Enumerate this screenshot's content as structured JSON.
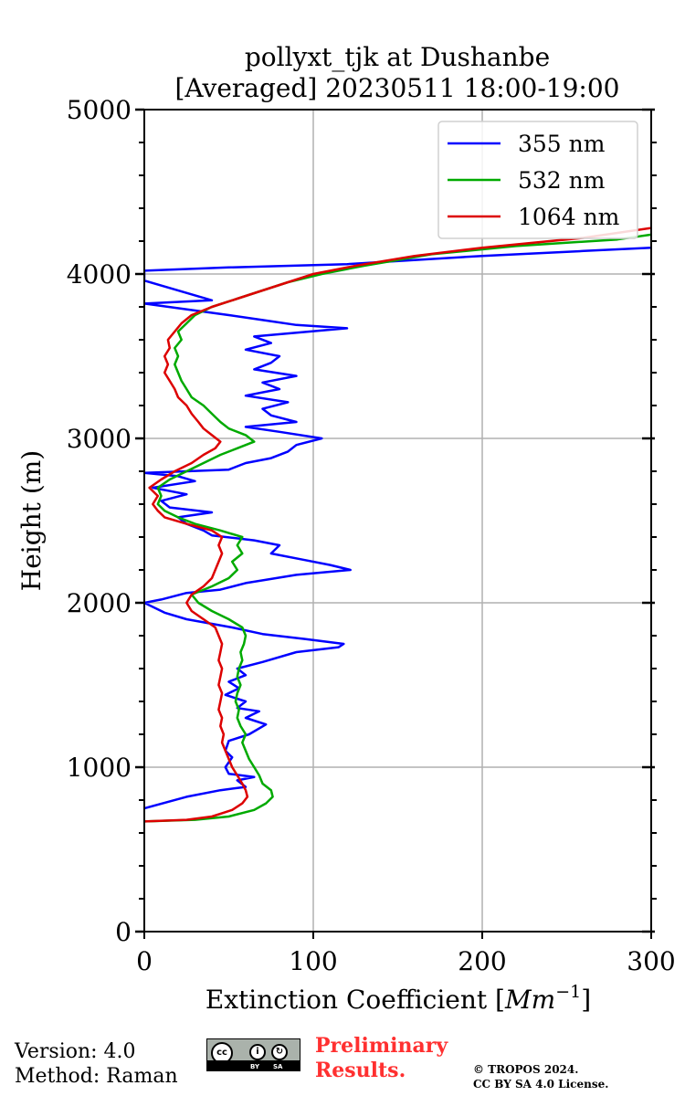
{
  "chart_data": {
    "type": "line",
    "title": [
      "pollyxt_tjk at Dushanbe",
      "[Averaged] 20230511 18:00-19:00"
    ],
    "xlabel": "Extinction Coefficient [Mm⁻¹]",
    "xlabel_main": "Extinction Coefficient [",
    "xlabel_unit": "Mm",
    "xlabel_exp": "−1",
    "xlabel_close": "]",
    "ylabel": "Height (m)",
    "xlim": [
      0,
      300
    ],
    "ylim": [
      0,
      5000
    ],
    "x_ticks": [
      0,
      100,
      200,
      300
    ],
    "x_tick_labels": [
      "0",
      "100",
      "200",
      "300"
    ],
    "y_ticks": [
      0,
      1000,
      2000,
      3000,
      4000,
      5000
    ],
    "y_tick_labels": [
      "0",
      "1000",
      "2000",
      "3000",
      "4000",
      "5000"
    ],
    "grid": true,
    "legend_position": "top-right",
    "series": [
      {
        "name": "355 nm",
        "color": "#0000ff",
        "points": [
          [
            0,
            750
          ],
          [
            25,
            820
          ],
          [
            45,
            860
          ],
          [
            60,
            880
          ],
          [
            55,
            920
          ],
          [
            65,
            940
          ],
          [
            50,
            960
          ],
          [
            48,
            1000
          ],
          [
            52,
            1060
          ],
          [
            48,
            1100
          ],
          [
            50,
            1160
          ],
          [
            62,
            1200
          ],
          [
            72,
            1260
          ],
          [
            60,
            1300
          ],
          [
            68,
            1340
          ],
          [
            55,
            1360
          ],
          [
            60,
            1400
          ],
          [
            48,
            1440
          ],
          [
            56,
            1480
          ],
          [
            50,
            1520
          ],
          [
            60,
            1560
          ],
          [
            55,
            1600
          ],
          [
            70,
            1640
          ],
          [
            90,
            1700
          ],
          [
            115,
            1730
          ],
          [
            118,
            1750
          ],
          [
            95,
            1780
          ],
          [
            70,
            1810
          ],
          [
            52,
            1850
          ],
          [
            25,
            1900
          ],
          [
            12,
            1940
          ],
          [
            0,
            2000
          ],
          [
            10,
            2020
          ],
          [
            25,
            2060
          ],
          [
            45,
            2080
          ],
          [
            60,
            2120
          ],
          [
            90,
            2170
          ],
          [
            122,
            2200
          ],
          [
            110,
            2230
          ],
          [
            95,
            2260
          ],
          [
            75,
            2300
          ],
          [
            80,
            2350
          ],
          [
            65,
            2380
          ],
          [
            40,
            2410
          ],
          [
            35,
            2440
          ],
          [
            25,
            2480
          ],
          [
            20,
            2520
          ],
          [
            40,
            2550
          ],
          [
            15,
            2580
          ],
          [
            10,
            2620
          ],
          [
            25,
            2660
          ],
          [
            5,
            2700
          ],
          [
            30,
            2740
          ],
          [
            20,
            2770
          ],
          [
            0,
            2790
          ],
          [
            50,
            2810
          ],
          [
            60,
            2850
          ],
          [
            75,
            2880
          ],
          [
            85,
            2920
          ],
          [
            90,
            2960
          ],
          [
            105,
            3000
          ],
          [
            80,
            3040
          ],
          [
            60,
            3070
          ],
          [
            90,
            3100
          ],
          [
            75,
            3140
          ],
          [
            70,
            3180
          ],
          [
            85,
            3220
          ],
          [
            60,
            3260
          ],
          [
            80,
            3300
          ],
          [
            70,
            3340
          ],
          [
            90,
            3380
          ],
          [
            65,
            3420
          ],
          [
            75,
            3460
          ],
          [
            80,
            3500
          ],
          [
            60,
            3540
          ],
          [
            75,
            3580
          ],
          [
            65,
            3620
          ],
          [
            120,
            3670
          ],
          [
            90,
            3690
          ],
          [
            70,
            3720
          ],
          [
            50,
            3750
          ],
          [
            0,
            3820
          ],
          [
            40,
            3840
          ],
          [
            0,
            3960
          ],
          [
            0,
            4020
          ],
          [
            50,
            4040
          ],
          [
            120,
            4060
          ],
          [
            200,
            4110
          ],
          [
            260,
            4140
          ],
          [
            300,
            4160
          ]
        ]
      },
      {
        "name": "532 nm",
        "color": "#00aa00",
        "points": [
          [
            0,
            670
          ],
          [
            30,
            680
          ],
          [
            50,
            700
          ],
          [
            65,
            740
          ],
          [
            72,
            780
          ],
          [
            76,
            820
          ],
          [
            75,
            860
          ],
          [
            70,
            900
          ],
          [
            68,
            950
          ],
          [
            65,
            1000
          ],
          [
            62,
            1050
          ],
          [
            60,
            1100
          ],
          [
            58,
            1150
          ],
          [
            60,
            1200
          ],
          [
            57,
            1250
          ],
          [
            55,
            1300
          ],
          [
            56,
            1350
          ],
          [
            54,
            1400
          ],
          [
            55,
            1450
          ],
          [
            57,
            1500
          ],
          [
            55,
            1550
          ],
          [
            56,
            1600
          ],
          [
            58,
            1650
          ],
          [
            57,
            1700
          ],
          [
            59,
            1750
          ],
          [
            60,
            1800
          ],
          [
            58,
            1850
          ],
          [
            50,
            1900
          ],
          [
            40,
            1950
          ],
          [
            32,
            2000
          ],
          [
            28,
            2050
          ],
          [
            40,
            2100
          ],
          [
            50,
            2150
          ],
          [
            55,
            2200
          ],
          [
            52,
            2250
          ],
          [
            58,
            2300
          ],
          [
            55,
            2350
          ],
          [
            58,
            2400
          ],
          [
            45,
            2440
          ],
          [
            30,
            2480
          ],
          [
            20,
            2520
          ],
          [
            12,
            2560
          ],
          [
            8,
            2600
          ],
          [
            10,
            2650
          ],
          [
            8,
            2700
          ],
          [
            15,
            2750
          ],
          [
            25,
            2800
          ],
          [
            35,
            2850
          ],
          [
            45,
            2900
          ],
          [
            55,
            2940
          ],
          [
            65,
            2980
          ],
          [
            60,
            3020
          ],
          [
            50,
            3060
          ],
          [
            45,
            3100
          ],
          [
            40,
            3150
          ],
          [
            35,
            3200
          ],
          [
            28,
            3250
          ],
          [
            25,
            3300
          ],
          [
            22,
            3350
          ],
          [
            20,
            3400
          ],
          [
            18,
            3450
          ],
          [
            20,
            3500
          ],
          [
            18,
            3550
          ],
          [
            22,
            3600
          ],
          [
            20,
            3650
          ],
          [
            25,
            3700
          ],
          [
            30,
            3750
          ],
          [
            40,
            3800
          ],
          [
            55,
            3850
          ],
          [
            70,
            3900
          ],
          [
            85,
            3950
          ],
          [
            105,
            4000
          ],
          [
            130,
            4050
          ],
          [
            170,
            4120
          ],
          [
            220,
            4170
          ],
          [
            280,
            4210
          ],
          [
            300,
            4240
          ]
        ]
      },
      {
        "name": "1064 nm",
        "color": "#dd0000",
        "points": [
          [
            0,
            670
          ],
          [
            25,
            680
          ],
          [
            40,
            700
          ],
          [
            52,
            740
          ],
          [
            58,
            780
          ],
          [
            61,
            820
          ],
          [
            60,
            860
          ],
          [
            58,
            900
          ],
          [
            55,
            950
          ],
          [
            52,
            1000
          ],
          [
            50,
            1050
          ],
          [
            48,
            1100
          ],
          [
            46,
            1150
          ],
          [
            47,
            1200
          ],
          [
            45,
            1250
          ],
          [
            46,
            1300
          ],
          [
            44,
            1350
          ],
          [
            45,
            1400
          ],
          [
            46,
            1450
          ],
          [
            44,
            1500
          ],
          [
            45,
            1550
          ],
          [
            46,
            1600
          ],
          [
            44,
            1650
          ],
          [
            45,
            1700
          ],
          [
            46,
            1750
          ],
          [
            44,
            1800
          ],
          [
            42,
            1850
          ],
          [
            35,
            1900
          ],
          [
            28,
            1950
          ],
          [
            25,
            2000
          ],
          [
            28,
            2050
          ],
          [
            35,
            2100
          ],
          [
            40,
            2150
          ],
          [
            42,
            2200
          ],
          [
            44,
            2250
          ],
          [
            46,
            2300
          ],
          [
            44,
            2350
          ],
          [
            46,
            2400
          ],
          [
            40,
            2440
          ],
          [
            25,
            2480
          ],
          [
            12,
            2520
          ],
          [
            8,
            2560
          ],
          [
            5,
            2600
          ],
          [
            8,
            2650
          ],
          [
            3,
            2700
          ],
          [
            10,
            2750
          ],
          [
            18,
            2800
          ],
          [
            28,
            2850
          ],
          [
            35,
            2900
          ],
          [
            42,
            2940
          ],
          [
            45,
            2980
          ],
          [
            40,
            3020
          ],
          [
            35,
            3060
          ],
          [
            32,
            3100
          ],
          [
            28,
            3150
          ],
          [
            25,
            3200
          ],
          [
            20,
            3250
          ],
          [
            18,
            3300
          ],
          [
            15,
            3350
          ],
          [
            12,
            3400
          ],
          [
            14,
            3450
          ],
          [
            12,
            3500
          ],
          [
            15,
            3550
          ],
          [
            14,
            3600
          ],
          [
            18,
            3650
          ],
          [
            22,
            3700
          ],
          [
            28,
            3750
          ],
          [
            40,
            3800
          ],
          [
            55,
            3850
          ],
          [
            70,
            3900
          ],
          [
            85,
            3950
          ],
          [
            100,
            4000
          ],
          [
            125,
            4050
          ],
          [
            160,
            4110
          ],
          [
            200,
            4160
          ],
          [
            260,
            4220
          ],
          [
            300,
            4280
          ]
        ]
      }
    ]
  },
  "footer": {
    "version": "Version: 4.0",
    "method": "Method: Raman",
    "preliminary_line1": "Preliminary",
    "preliminary_line2": "Results.",
    "copyright_line1": "© TROPOS 2024.",
    "copyright_line2": "CC BY SA 4.0 License.",
    "cc_badge": {
      "cc": "cc",
      "by": "BY",
      "sa": "SA"
    }
  }
}
